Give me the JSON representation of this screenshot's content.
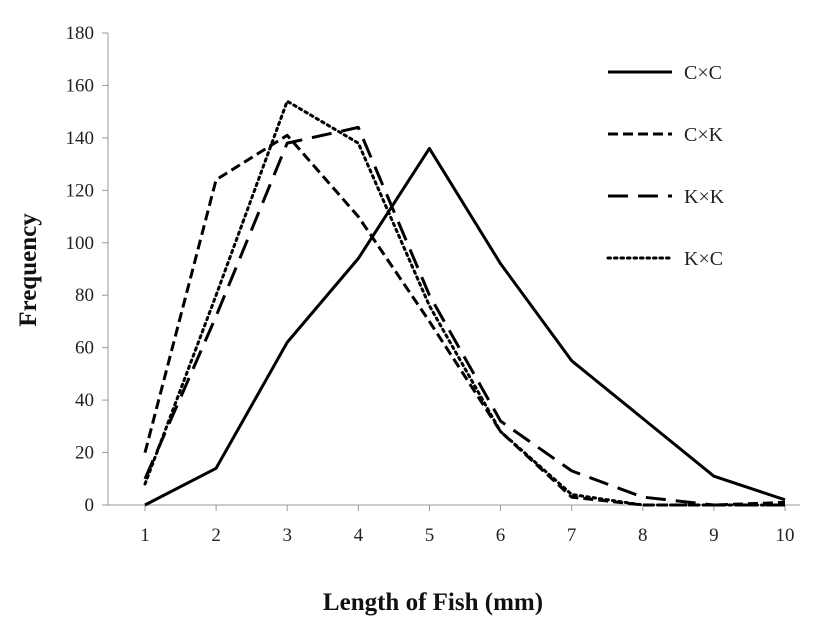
{
  "chart_data": {
    "type": "line",
    "title": "",
    "xlabel": "Length of Fish (mm)",
    "ylabel": "Frequency",
    "x": [
      1,
      2,
      3,
      4,
      5,
      6,
      7,
      8,
      9,
      10
    ],
    "xlim": [
      1,
      10
    ],
    "ylim": [
      0,
      180
    ],
    "yticks": [
      0,
      20,
      40,
      60,
      80,
      100,
      120,
      140,
      160,
      180
    ],
    "grid": false,
    "legend_position": "top-right",
    "series": [
      {
        "name": "C×C",
        "style": "solid",
        "color": "#000000",
        "values": [
          0,
          14,
          62,
          94,
          136,
          92,
          55,
          33,
          11,
          2
        ]
      },
      {
        "name": "C×K",
        "style": "dashed",
        "color": "#000000",
        "values": [
          20,
          124,
          141,
          110,
          70,
          28,
          3,
          0,
          0,
          1
        ]
      },
      {
        "name": "K×K",
        "style": "long-dashed",
        "color": "#000000",
        "values": [
          10,
          72,
          138,
          144,
          80,
          32,
          13,
          3,
          0,
          0
        ]
      },
      {
        "name": "K×C",
        "style": "dotted",
        "color": "#000000",
        "values": [
          8,
          80,
          154,
          138,
          76,
          28,
          4,
          0,
          0,
          0
        ]
      }
    ]
  }
}
